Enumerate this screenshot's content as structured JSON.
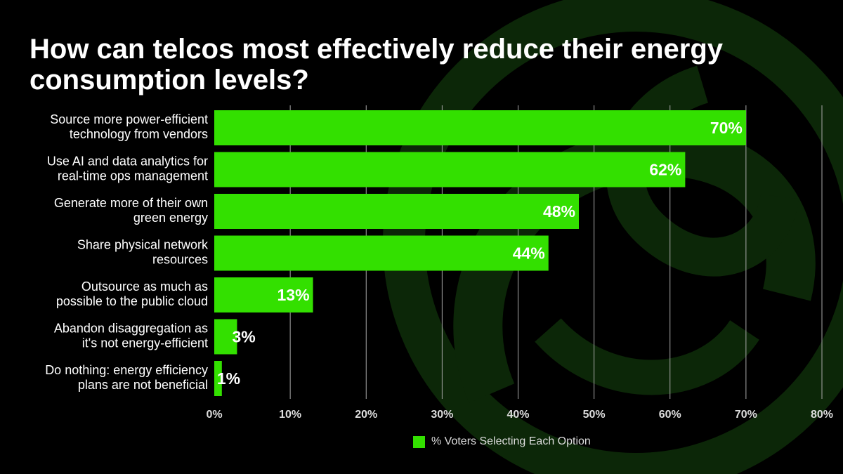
{
  "chart_data": {
    "type": "bar",
    "orientation": "horizontal",
    "title": "How can telcos most effectively reduce their energy consumption levels?",
    "categories": [
      [
        "Source more power-efficient",
        "technology from vendors"
      ],
      [
        "Use AI and data analytics for",
        "real-time ops management"
      ],
      [
        "Generate more of their own",
        "green energy"
      ],
      [
        "Share physical network",
        "resources"
      ],
      [
        "Outsource as much as",
        "possible to the public cloud"
      ],
      [
        "Abandon disaggregation as",
        "it's not energy-efficient"
      ],
      [
        "Do nothing: energy efficiency",
        "plans are not beneficial"
      ]
    ],
    "series": [
      {
        "name": "% Voters Selecting Each Option",
        "values": [
          70,
          62,
          48,
          44,
          13,
          3,
          1
        ]
      }
    ],
    "data_labels": [
      "70%",
      "62%",
      "48%",
      "44%",
      "13%",
      "3%",
      "1%"
    ],
    "xlim": [
      0,
      80
    ],
    "ticks": [
      "0%",
      "10%",
      "20%",
      "30%",
      "40%",
      "50%",
      "60%",
      "70%",
      "80%"
    ],
    "grid": true,
    "legend": "bottom",
    "colors": {
      "bar": "#33e000",
      "background": "#000000",
      "logo": "#0c2708"
    }
  }
}
